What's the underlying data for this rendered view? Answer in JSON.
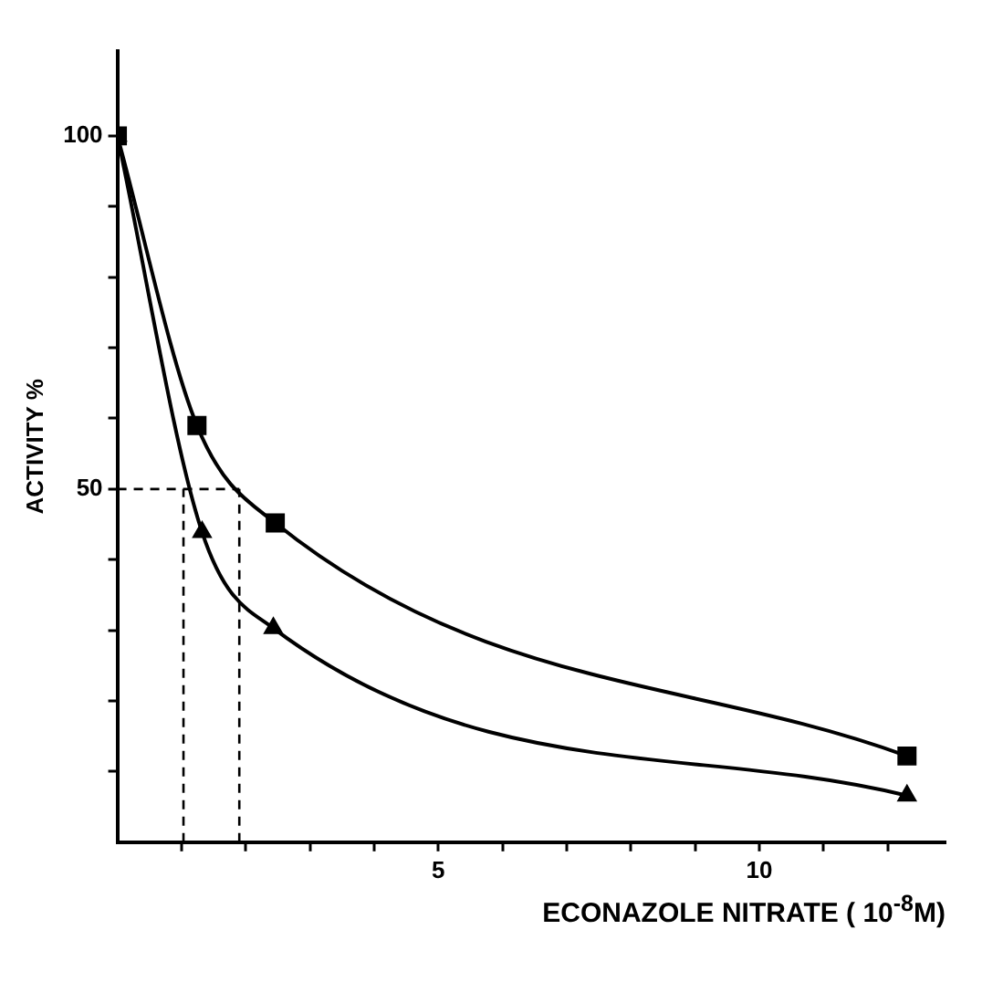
{
  "chart_data": {
    "type": "line",
    "xlabel": "ECONAZOLE NITRATE ( 10$^{-8}$M)",
    "ylabel": "ACTIVITY %",
    "xlim": [
      0,
      12.9
    ],
    "ylim": [
      0,
      112
    ],
    "xticks": [
      {
        "value": 1,
        "label": null
      },
      {
        "value": 2,
        "label": null
      },
      {
        "value": 3,
        "label": null
      },
      {
        "value": 4,
        "label": null
      },
      5,
      {
        "value": 6,
        "label": null
      },
      {
        "value": 7,
        "label": null
      },
      {
        "value": 8,
        "label": null
      },
      {
        "value": 9,
        "label": null
      },
      10,
      {
        "value": 11,
        "label": null
      },
      {
        "value": 12,
        "label": null
      }
    ],
    "yticks": [
      {
        "value": 10,
        "label": null
      },
      {
        "value": 20,
        "label": null
      },
      {
        "value": 30,
        "label": null
      },
      {
        "value": 40,
        "label": null
      },
      50,
      {
        "value": 60,
        "label": null
      },
      {
        "value": 70,
        "label": null
      },
      {
        "value": 80,
        "label": null
      },
      {
        "value": 90,
        "label": null
      },
      100
    ],
    "grid": false,
    "legend": false,
    "line_style": "solid",
    "series": [
      {
        "color": "#000000",
        "marker": "square",
        "x": [
          0,
          1.24,
          2.46,
          12.3
        ],
        "values": [
          100,
          59,
          45.2,
          12.2
        ]
      },
      {
        "color": "#000000",
        "marker": "triangle",
        "x": [
          0,
          1.32,
          2.43,
          12.3
        ],
        "values": [
          100,
          43.9,
          30.3,
          6.6
        ]
      }
    ],
    "ref_lines": [
      {
        "axis": "y",
        "value": 50,
        "line_style": "dashed",
        "color": "#000000"
      },
      {
        "axis": "x",
        "value": 1.03,
        "line_style": "dashed",
        "color": "#000000"
      },
      {
        "axis": "x",
        "value": 1.9,
        "line_style": "dashed",
        "color": "#000000"
      }
    ]
  }
}
